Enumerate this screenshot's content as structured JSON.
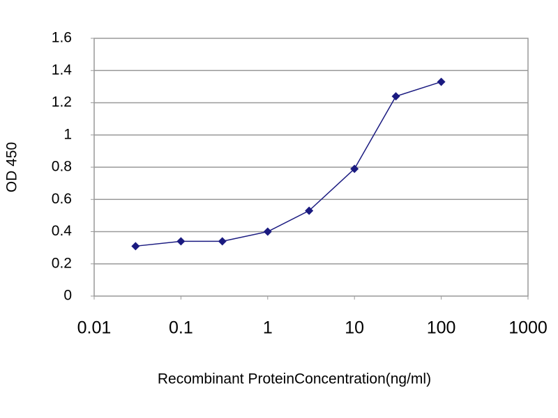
{
  "chart_data": {
    "type": "line",
    "log_x": true,
    "grid": true,
    "x_label": "Recombinant ProteinConcentration(ng/ml)",
    "y_label": "OD 450",
    "x": [
      0.03,
      0.1,
      0.3,
      1,
      3,
      10,
      30,
      100
    ],
    "values": [
      0.31,
      0.34,
      0.34,
      0.4,
      0.53,
      0.79,
      1.24,
      1.33
    ],
    "color": "#1a1a80",
    "xlim": [
      0.01,
      1000
    ],
    "xticks": [
      0.01,
      0.1,
      1,
      10,
      100,
      1000
    ],
    "ylim": [
      0,
      1.6
    ],
    "yticks": [
      0,
      0.2,
      0.4,
      0.6,
      0.8,
      1,
      1.2,
      1.4,
      1.6
    ]
  }
}
